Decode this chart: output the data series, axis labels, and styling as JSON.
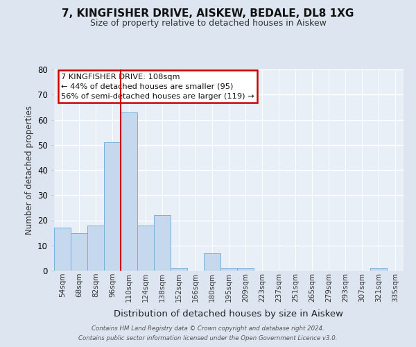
{
  "title": "7, KINGFISHER DRIVE, AISKEW, BEDALE, DL8 1XG",
  "subtitle": "Size of property relative to detached houses in Aiskew",
  "xlabel": "Distribution of detached houses by size in Aiskew",
  "ylabel": "Number of detached properties",
  "bin_labels": [
    "54sqm",
    "68sqm",
    "82sqm",
    "96sqm",
    "110sqm",
    "124sqm",
    "138sqm",
    "152sqm",
    "166sqm",
    "180sqm",
    "195sqm",
    "209sqm",
    "223sqm",
    "237sqm",
    "251sqm",
    "265sqm",
    "279sqm",
    "293sqm",
    "307sqm",
    "321sqm",
    "335sqm"
  ],
  "bar_values": [
    17,
    15,
    18,
    51,
    63,
    18,
    22,
    1,
    0,
    7,
    1,
    1,
    0,
    0,
    0,
    0,
    0,
    0,
    0,
    1,
    0
  ],
  "bar_color": "#c5d8ed",
  "bar_edge_color": "#7aafd4",
  "vline_color": "#cc0000",
  "ylim": [
    0,
    80
  ],
  "yticks": [
    0,
    10,
    20,
    30,
    40,
    50,
    60,
    70,
    80
  ],
  "bg_color": "#dde6f0",
  "plot_bg_color": "#e8eff7",
  "grid_color": "#ffffff",
  "annotation_line1": "7 KINGFISHER DRIVE: 108sqm",
  "annotation_line2": "← 44% of detached houses are smaller (95)",
  "annotation_line3": "56% of semi-detached houses are larger (119) →",
  "annotation_box_color": "#cc0000",
  "footer_line1": "Contains HM Land Registry data © Crown copyright and database right 2024.",
  "footer_line2": "Contains public sector information licensed under the Open Government Licence v3.0."
}
